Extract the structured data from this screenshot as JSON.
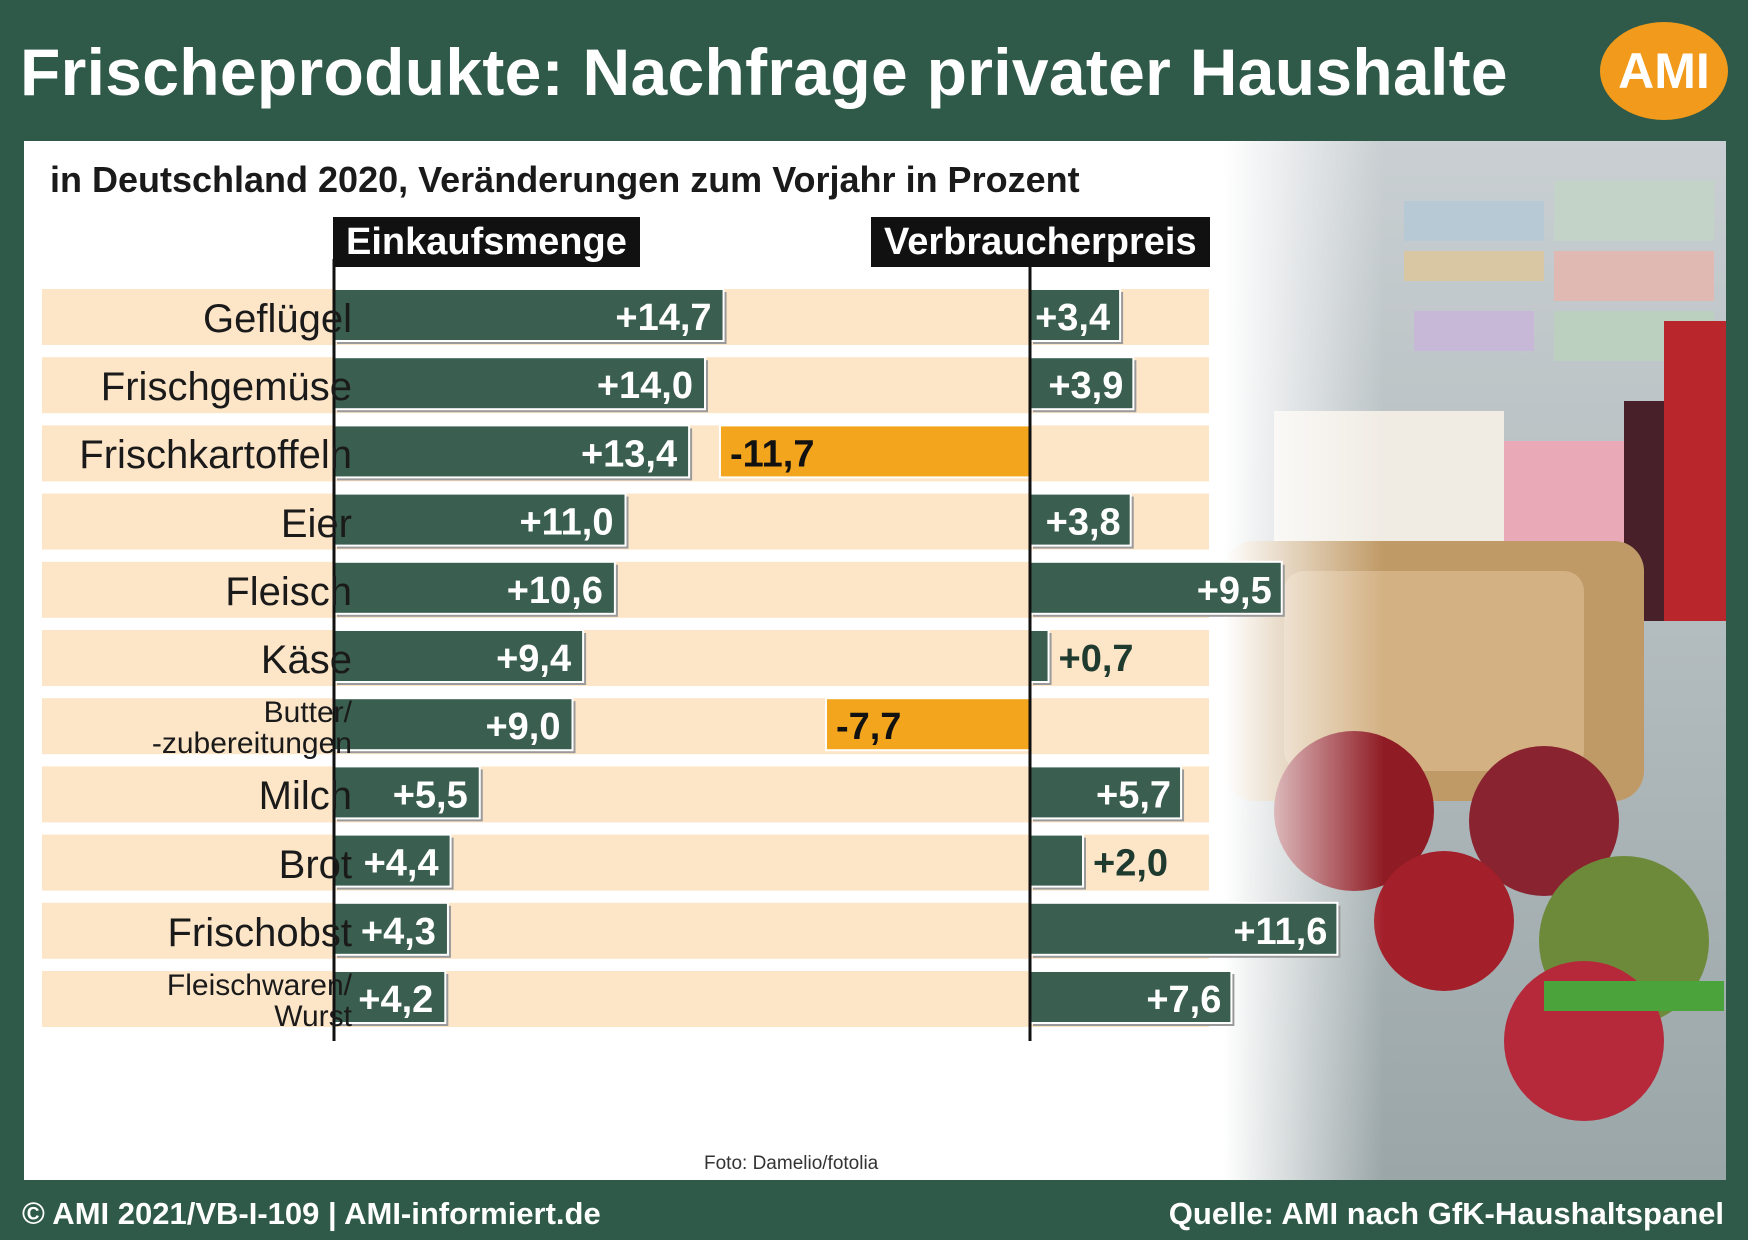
{
  "header": {
    "title": "Frischeprodukte: Nachfrage privater Haushalte",
    "logo_text": "AMI",
    "logo_color": "#f29a1c"
  },
  "subtitle": "in Deutschland 2020, Veränderungen zum Vorjahr in Prozent",
  "photo_credit": "Foto: Damelio/fotolia",
  "footer": {
    "left": "© AMI 2021/VB-I-109 | AMI-informiert.de",
    "right": "Quelle: AMI nach GfK-Haushaltspanel"
  },
  "colors": {
    "positive_bar": "#3a5e50",
    "negative_bar": "#f2a51d",
    "row_band": "#fde5c8",
    "label_box": "#111111",
    "frame": "#2f5a49"
  },
  "chart_data": {
    "type": "bar",
    "orientation": "horizontal",
    "categories": [
      "Geflügel",
      "Frischgemüse",
      "Frischkartoffeln",
      "Eier",
      "Fleisch",
      "Käse",
      "Butter/ -zubereitungen",
      "Milch",
      "Brot",
      "Frischobst",
      "Fleischwaren/ Wurst"
    ],
    "category_lines": [
      [
        "Geflügel"
      ],
      [
        "Frischgemüse"
      ],
      [
        "Frischkartoffeln"
      ],
      [
        "Eier"
      ],
      [
        "Fleisch"
      ],
      [
        "Käse"
      ],
      [
        "Butter/",
        "-zubereitungen"
      ],
      [
        "Milch"
      ],
      [
        "Brot"
      ],
      [
        "Frischobst"
      ],
      [
        "Fleischwaren/",
        "Wurst"
      ]
    ],
    "series": [
      {
        "name": "Einkaufsmenge",
        "values": [
          14.7,
          14.0,
          13.4,
          11.0,
          10.6,
          9.4,
          9.0,
          5.5,
          4.4,
          4.3,
          4.2
        ],
        "labels": [
          "+14,7",
          "+14,0",
          "+13,4",
          "+11,0",
          "+10,6",
          "+9,4",
          "+9,0",
          "+5,5",
          "+4,4",
          "+4,3",
          "+4,2"
        ]
      },
      {
        "name": "Verbraucherpreis",
        "values": [
          3.4,
          3.9,
          -11.7,
          3.8,
          9.5,
          0.7,
          -7.7,
          5.7,
          2.0,
          11.6,
          7.6
        ],
        "labels": [
          "+3,4",
          "+3,9",
          "-11,7",
          "+3,8",
          "+9,5",
          "+0,7",
          "-7,7",
          "+5,7",
          "+2,0",
          "+11,6",
          "+7,6"
        ]
      }
    ]
  }
}
